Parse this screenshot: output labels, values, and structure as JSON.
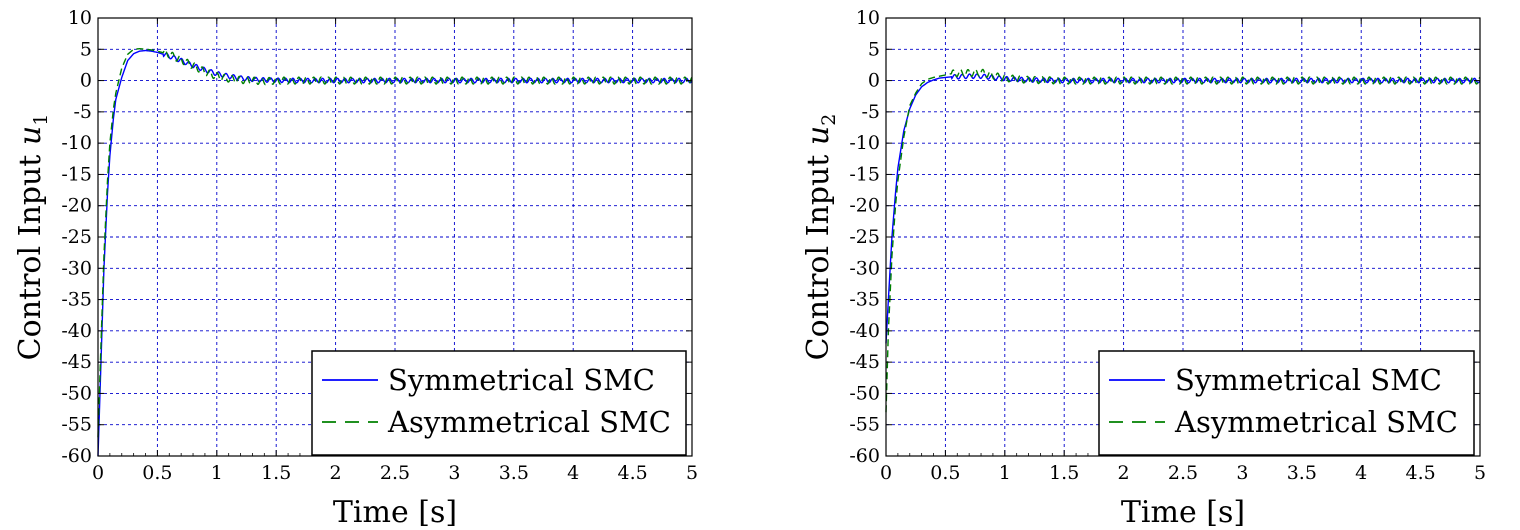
{
  "chart_data": [
    {
      "type": "line",
      "xlabel": "Time [s]",
      "ylabel_text": "Control Input ",
      "ylabel_var": "u",
      "ylabel_sub": "1",
      "xlim": [
        0,
        5
      ],
      "ylim": [
        -60,
        10
      ],
      "xticks": [
        "0",
        "0.5",
        "1",
        "1.5",
        "2",
        "2.5",
        "3",
        "3.5",
        "4",
        "4.5",
        "5"
      ],
      "yticks": [
        "10",
        "5",
        "0",
        "-5",
        "-10",
        "-15",
        "-20",
        "-25",
        "-30",
        "-35",
        "-40",
        "-45",
        "-50",
        "-55",
        "-60"
      ],
      "grid": true,
      "legend_position": "bottom-right",
      "series": [
        {
          "name": "Symmetrical SMC",
          "color": "#0000ff",
          "style": "solid",
          "x": [
            0,
            0.02,
            0.05,
            0.08,
            0.1,
            0.13,
            0.15,
            0.2,
            0.25,
            0.3,
            0.35,
            0.4,
            0.45,
            0.5,
            0.6,
            0.7,
            0.8,
            0.9,
            1.0,
            1.1,
            1.2,
            1.3,
            1.4,
            1.5,
            1.7,
            2.0,
            2.5,
            3.0,
            3.5,
            4.0,
            4.5,
            5.0
          ],
          "y": [
            -60,
            -48,
            -30,
            -18,
            -12,
            -6,
            -3,
            0.5,
            3.2,
            4.3,
            4.7,
            4.8,
            4.7,
            4.5,
            3.9,
            3.2,
            2.4,
            1.7,
            1.1,
            0.7,
            0.4,
            0.2,
            0.1,
            0.05,
            0,
            0,
            0,
            0,
            0,
            0,
            0,
            0
          ]
        },
        {
          "name": "Asymmetrical SMC",
          "color": "#008000",
          "style": "dashed",
          "x": [
            0,
            0.02,
            0.05,
            0.08,
            0.1,
            0.13,
            0.15,
            0.2,
            0.25,
            0.3,
            0.35,
            0.4,
            0.45,
            0.5,
            0.6,
            0.7,
            0.8,
            0.9,
            1.0,
            1.1,
            1.2,
            1.3,
            1.4,
            1.5,
            1.7,
            2.0,
            2.5,
            3.0,
            3.5,
            4.0,
            4.5,
            5.0
          ],
          "y": [
            -57,
            -45,
            -28,
            -16,
            -10,
            -4.5,
            -2,
            2,
            4.2,
            5.0,
            5.1,
            5.0,
            4.9,
            4.7,
            4.2,
            3.3,
            2.4,
            1.4,
            0.7,
            0.3,
            0.1,
            0,
            -0.1,
            0,
            0,
            0,
            0,
            0,
            0,
            0,
            0,
            0
          ]
        }
      ]
    },
    {
      "type": "line",
      "xlabel": "Time [s]",
      "ylabel_text": "Control Input ",
      "ylabel_var": "u",
      "ylabel_sub": "2",
      "xlim": [
        0,
        5
      ],
      "ylim": [
        -60,
        10
      ],
      "xticks": [
        "0",
        "0.5",
        "1",
        "1.5",
        "2",
        "2.5",
        "3",
        "3.5",
        "4",
        "4.5",
        "5"
      ],
      "yticks": [
        "10",
        "5",
        "0",
        "-5",
        "-10",
        "-15",
        "-20",
        "-25",
        "-30",
        "-35",
        "-40",
        "-45",
        "-50",
        "-55",
        "-60"
      ],
      "grid": true,
      "legend_position": "bottom-right",
      "series": [
        {
          "name": "Symmetrical SMC",
          "color": "#0000ff",
          "style": "solid",
          "x": [
            0,
            0.02,
            0.05,
            0.08,
            0.1,
            0.15,
            0.2,
            0.25,
            0.3,
            0.35,
            0.4,
            0.45,
            0.5,
            0.55,
            0.6,
            0.7,
            0.8,
            0.9,
            1.0,
            1.2,
            1.5,
            2.0,
            2.5,
            3.0,
            3.5,
            4.0,
            4.5,
            5.0
          ],
          "y": [
            -42,
            -35,
            -25,
            -18,
            -14,
            -8,
            -4.5,
            -2.3,
            -1,
            -0.3,
            0.1,
            0.4,
            0.5,
            0.6,
            0.6,
            0.7,
            0.7,
            0.5,
            0.3,
            0.1,
            0,
            0,
            0,
            0,
            0,
            0,
            0,
            0
          ]
        },
        {
          "name": "Asymmetrical SMC",
          "color": "#008000",
          "style": "dashed",
          "x": [
            0,
            0.02,
            0.05,
            0.08,
            0.1,
            0.15,
            0.2,
            0.25,
            0.3,
            0.35,
            0.4,
            0.45,
            0.5,
            0.55,
            0.6,
            0.7,
            0.8,
            0.9,
            1.0,
            1.2,
            1.5,
            2.0,
            2.5,
            3.0,
            3.5,
            4.0,
            4.5,
            5.0
          ],
          "y": [
            -53,
            -40,
            -28,
            -20,
            -16,
            -9,
            -4,
            -2,
            -0.5,
            0.2,
            0.5,
            0.7,
            0.9,
            1.1,
            1.2,
            1.2,
            1.3,
            0.8,
            0.4,
            0.1,
            0,
            0,
            0,
            0,
            0,
            0,
            0,
            0
          ]
        }
      ]
    }
  ]
}
